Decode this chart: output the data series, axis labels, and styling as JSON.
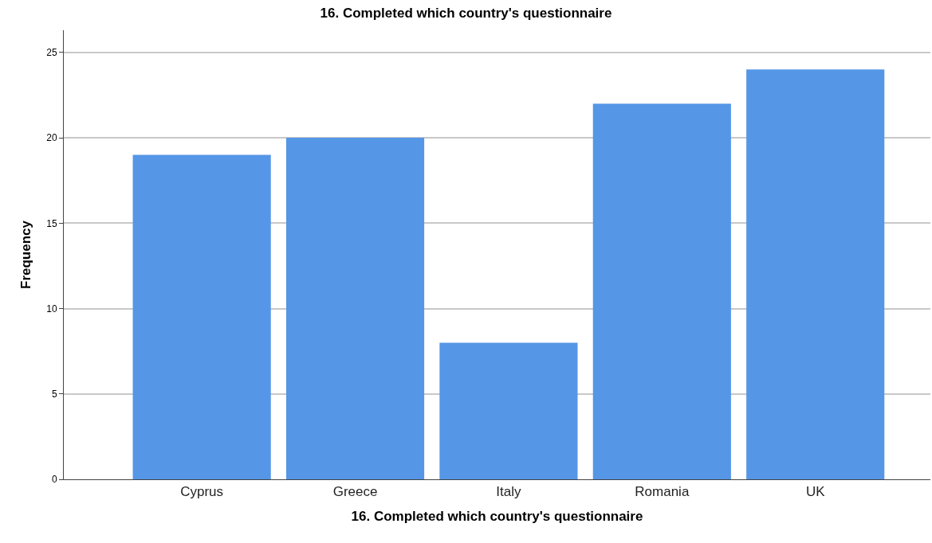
{
  "chart_data": {
    "type": "bar",
    "title": "16. Completed which country's questionnaire",
    "xlabel": "16. Completed which country's questionnaire",
    "ylabel": "Frequency",
    "categories": [
      "Cyprus",
      "Greece",
      "Italy",
      "Romania",
      "UK"
    ],
    "values": [
      19,
      20,
      8,
      22,
      24
    ],
    "color": "#5596e6",
    "ylim": [
      0,
      26.3
    ],
    "yticks": [
      0,
      5,
      10,
      15,
      20,
      25
    ],
    "grid": "y",
    "legend": false
  }
}
